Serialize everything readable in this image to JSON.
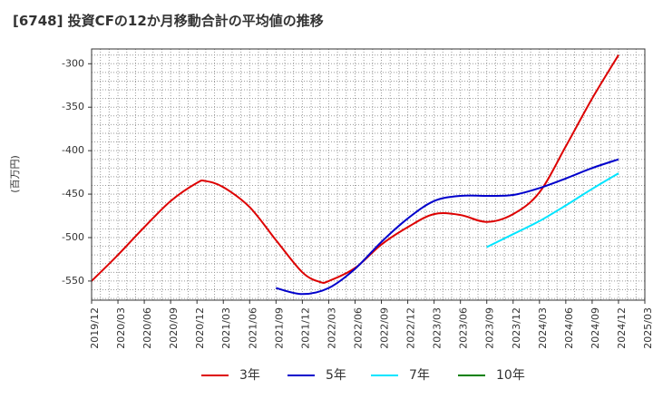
{
  "chart_data": {
    "type": "line",
    "title": "[6748]  投資CFの12か月移動合計の平均値の推移",
    "ylabel": "(百万円)",
    "xlabel": "",
    "ylim": [
      -572,
      -283
    ],
    "yticks": [
      -300,
      -350,
      -400,
      -450,
      -500,
      -550
    ],
    "xticks": [
      "2019/12",
      "2020/03",
      "2020/06",
      "2020/09",
      "2020/12",
      "2021/03",
      "2021/06",
      "2021/09",
      "2021/12",
      "2022/03",
      "2022/06",
      "2022/09",
      "2022/12",
      "2023/03",
      "2023/06",
      "2023/09",
      "2023/12",
      "2024/03",
      "2024/06",
      "2024/09",
      "2024/12",
      "2025/03"
    ],
    "grid": true,
    "legend_position": "bottom",
    "series": [
      {
        "name": "3年",
        "color": "#dd0000",
        "x": [
          "2019/12",
          "2020/03",
          "2020/06",
          "2020/09",
          "2020/12",
          "2021/01",
          "2021/03",
          "2021/06",
          "2021/09",
          "2021/12",
          "2022/02",
          "2022/03",
          "2022/06",
          "2022/09",
          "2022/12",
          "2023/03",
          "2023/06",
          "2023/09",
          "2023/12",
          "2024/03",
          "2024/06",
          "2024/09",
          "2024/12"
        ],
        "values": [
          -550,
          -520,
          -488,
          -458,
          -437,
          -435,
          -442,
          -465,
          -503,
          -540,
          -551,
          -550,
          -535,
          -508,
          -488,
          -473,
          -474,
          -482,
          -473,
          -448,
          -395,
          -340,
          -290
        ]
      },
      {
        "name": "5年",
        "color": "#0000cc",
        "x": [
          "2021/09",
          "2021/12",
          "2022/03",
          "2022/06",
          "2022/09",
          "2022/12",
          "2023/03",
          "2023/06",
          "2023/09",
          "2023/12",
          "2024/03",
          "2024/06",
          "2024/09",
          "2024/12"
        ],
        "values": [
          -558,
          -565,
          -558,
          -536,
          -505,
          -478,
          -458,
          -452,
          -452,
          -451,
          -443,
          -432,
          -420,
          -410
        ]
      },
      {
        "name": "7年",
        "color": "#00e5ff",
        "x": [
          "2023/09",
          "2023/12",
          "2024/03",
          "2024/06",
          "2024/09",
          "2024/12"
        ],
        "values": [
          -511,
          -496,
          -481,
          -463,
          -444,
          -426
        ]
      },
      {
        "name": "10年",
        "color": "#008000",
        "x": [],
        "values": []
      }
    ]
  }
}
